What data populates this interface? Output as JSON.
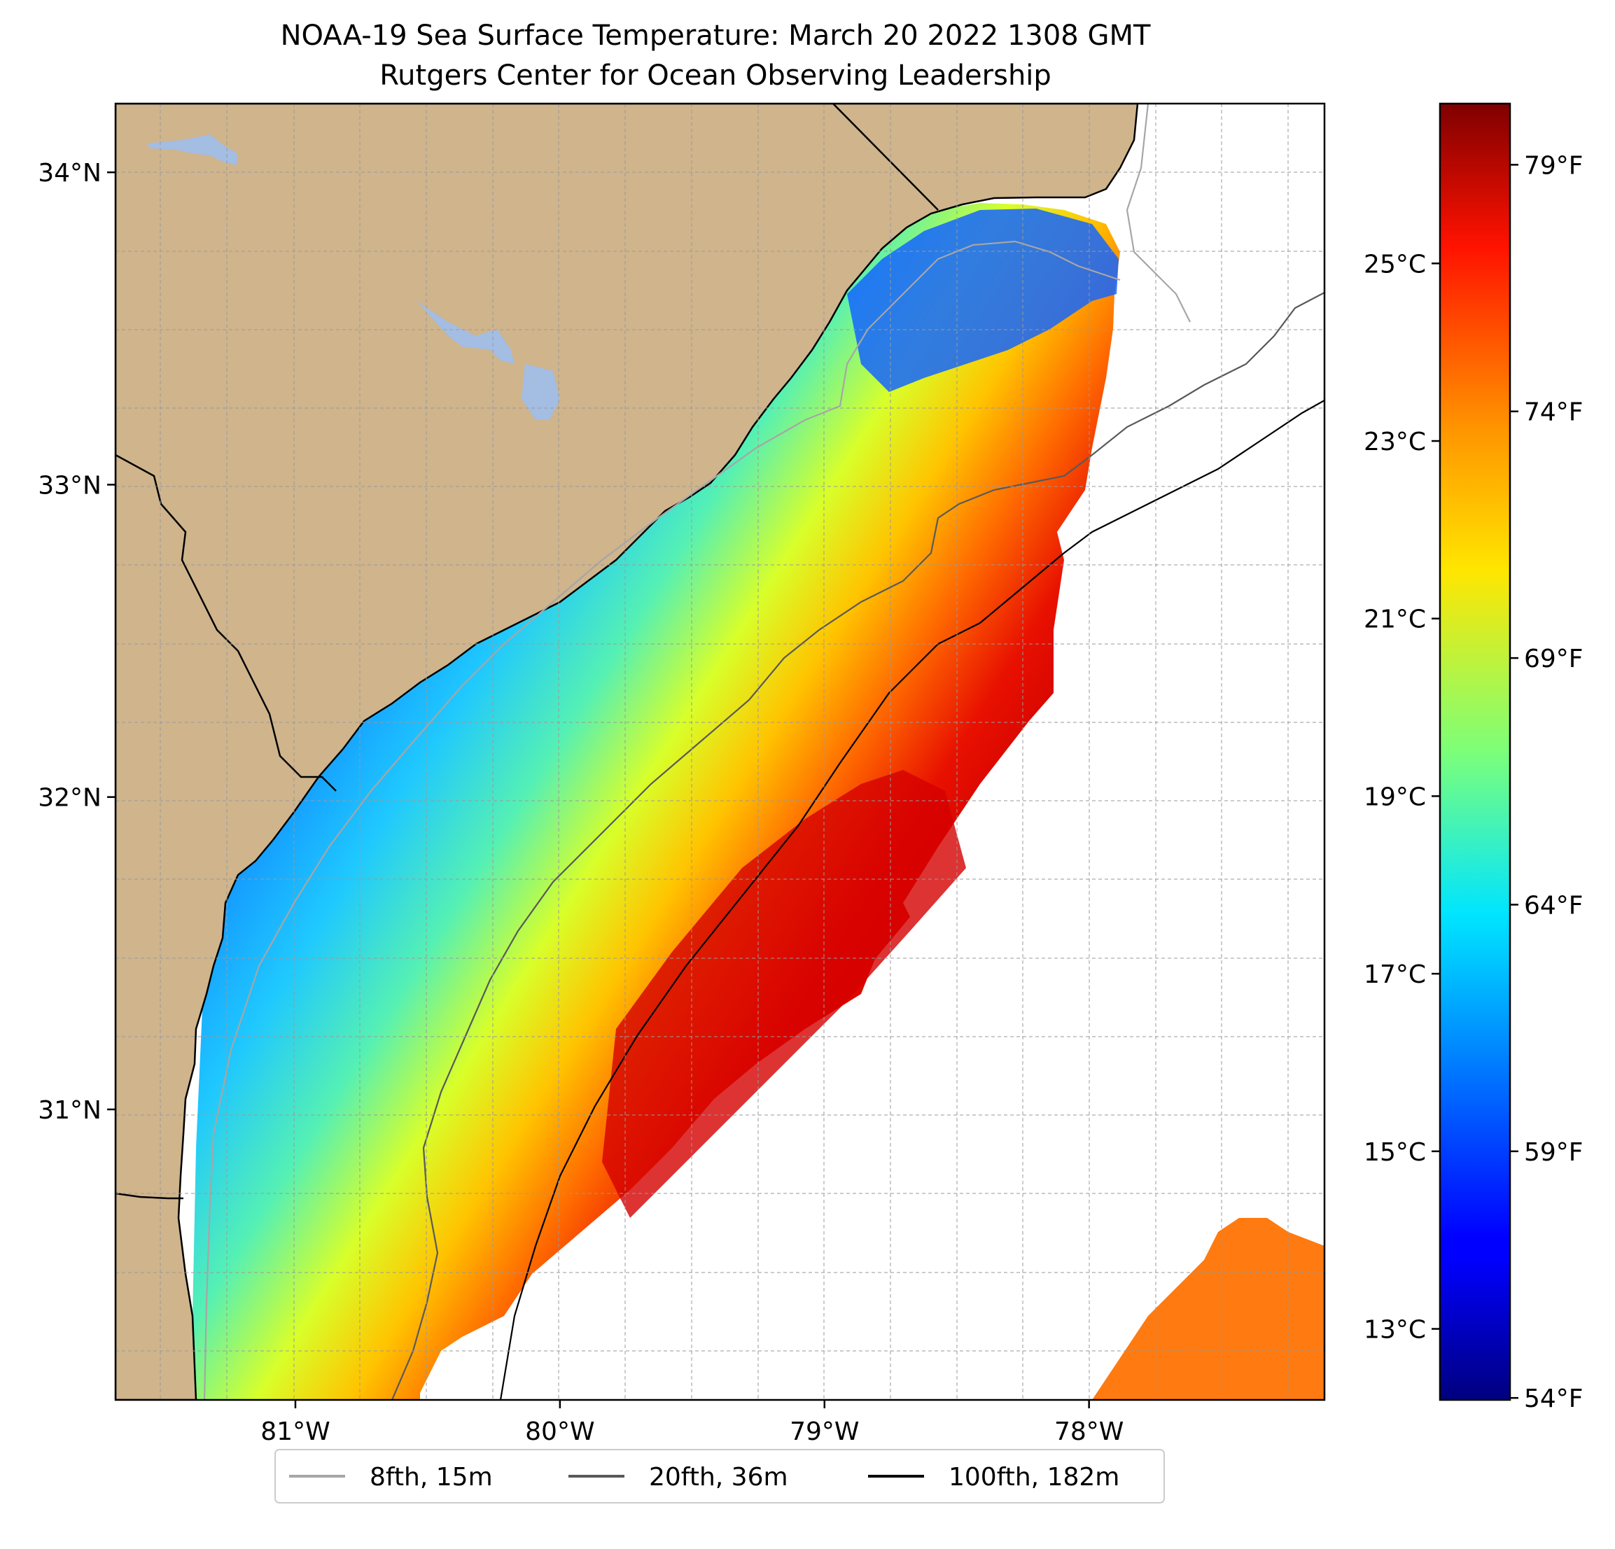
{
  "title": {
    "line1": "NOAA-19 Sea Surface Temperature: March 20 2022 1308 GMT",
    "line2": "Rutgers Center for Ocean Observing Leadership"
  },
  "map": {
    "lon_range": [
      -81.68,
      -77.11
    ],
    "lat_range": [
      30.07,
      34.22
    ],
    "lon_ticks": [
      {
        "value": -81,
        "label": "81°W"
      },
      {
        "value": -80,
        "label": "80°W"
      },
      {
        "value": -79,
        "label": "79°W"
      },
      {
        "value": -78,
        "label": "78°W"
      }
    ],
    "lat_ticks": [
      {
        "value": 34,
        "label": "34°N"
      },
      {
        "value": 33,
        "label": "33°N"
      },
      {
        "value": 32,
        "label": "32°N"
      },
      {
        "value": 31,
        "label": "31°N"
      }
    ],
    "land_color": "#cfb48c",
    "lake_color": "#a3bde3",
    "grid": true
  },
  "colorbar": {
    "colormap": "jet",
    "range_c": [
      12.2,
      26.8
    ],
    "celsius_ticks": [
      {
        "value": 13,
        "label": "13°C"
      },
      {
        "value": 15,
        "label": "15°C"
      },
      {
        "value": 17,
        "label": "17°C"
      },
      {
        "value": 19,
        "label": "19°C"
      },
      {
        "value": 21,
        "label": "21°C"
      },
      {
        "value": 23,
        "label": "23°C"
      },
      {
        "value": 25,
        "label": "25°C"
      }
    ],
    "fahrenheit_ticks": [
      {
        "value": 54,
        "label": "54°F"
      },
      {
        "value": 59,
        "label": "59°F"
      },
      {
        "value": 64,
        "label": "64°F"
      },
      {
        "value": 69,
        "label": "69°F"
      },
      {
        "value": 74,
        "label": "74°F"
      },
      {
        "value": 79,
        "label": "79°F"
      }
    ]
  },
  "legend": {
    "items": [
      {
        "label": "8fth, 15m",
        "color": "#a6a6a6"
      },
      {
        "label": "20fth, 36m",
        "color": "#595959"
      },
      {
        "label": "100fth, 182m",
        "color": "#000000"
      }
    ]
  }
}
